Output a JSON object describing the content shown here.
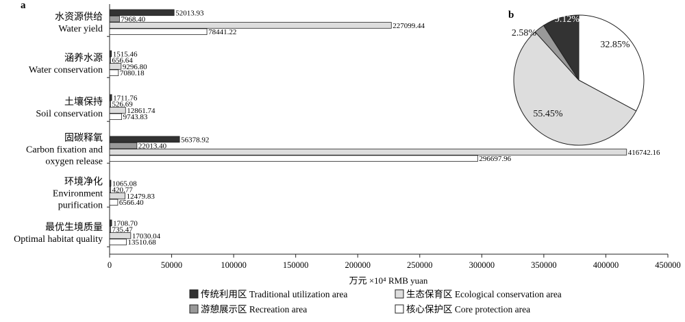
{
  "colors": {
    "traditional": "#333333",
    "recreation": "#999999",
    "ecological": "#dddddd",
    "core": "#ffffff",
    "stroke": "#222222"
  },
  "chart_data": [
    {
      "panel": "a",
      "type": "bar",
      "orientation": "horizontal",
      "categories": [
        {
          "zh": "水资源供给",
          "en": [
            "Water yield"
          ]
        },
        {
          "zh": "涵养水源",
          "en": [
            "Water conservation"
          ]
        },
        {
          "zh": "土壤保持",
          "en": [
            "Soil conservation"
          ]
        },
        {
          "zh": "固碳释氧",
          "en": [
            "Carbon fixation and",
            "oxygen release"
          ]
        },
        {
          "zh": "环境净化",
          "en": [
            "Environment",
            "purification"
          ]
        },
        {
          "zh": "最优生境质量",
          "en": [
            "Optimal habitat quality"
          ]
        }
      ],
      "series": [
        {
          "key": "traditional",
          "name": "传统利用区 Traditional utilization area",
          "values": [
            52013.93,
            1515.46,
            1711.76,
            56378.92,
            1065.08,
            1708.7
          ],
          "labels": [
            "52013.93",
            "1515.46",
            "1711.76",
            "56378.92",
            "1065.08",
            "1708.70"
          ]
        },
        {
          "key": "recreation",
          "name": "游憩展示区 Recreation area",
          "values": [
            7968.4,
            656.64,
            526.69,
            22013.4,
            420.77,
            735.47
          ],
          "labels": [
            "7968.40",
            "656.64",
            "526.69",
            "22013.40",
            "420.77",
            "735.47"
          ]
        },
        {
          "key": "ecological",
          "name": "生态保育区 Ecological conservation area",
          "values": [
            227099.44,
            9296.8,
            12861.74,
            416742.16,
            12479.83,
            17030.04
          ],
          "labels": [
            "227099.44",
            "9296.80",
            "12861.74",
            "416742.16",
            "12479.83",
            "17030.04"
          ]
        },
        {
          "key": "core",
          "name": "核心保护区 Core protection area",
          "values": [
            78441.22,
            7080.18,
            9743.83,
            296697.96,
            6566.4,
            13510.68
          ],
          "labels": [
            "78441.22",
            "7080.18",
            "9743.83",
            "296697.96",
            "6566.40",
            "13510.68"
          ]
        }
      ],
      "xlabel": "万元 ×10⁴ RMB yuan",
      "xlim": [
        0,
        450000
      ],
      "xticks": [
        0,
        50000,
        100000,
        150000,
        200000,
        250000,
        300000,
        350000,
        400000,
        450000
      ],
      "grid": false,
      "legend_position": "bottom"
    },
    {
      "panel": "b",
      "type": "pie",
      "slices": [
        {
          "key": "traditional",
          "value": 9.12,
          "label": "9.12%"
        },
        {
          "key": "core",
          "value": 32.85,
          "label": "32.85%"
        },
        {
          "key": "ecological",
          "value": 55.45,
          "label": "55.45%"
        },
        {
          "key": "recreation",
          "value": 2.58,
          "label": "2.58%"
        }
      ]
    }
  ],
  "legend": [
    {
      "key": "traditional",
      "label": "传统利用区 Traditional utilization area"
    },
    {
      "key": "ecological",
      "label": "生态保育区 Ecological conservation area"
    },
    {
      "key": "recreation",
      "label": "游憩展示区 Recreation area"
    },
    {
      "key": "core",
      "label": "核心保护区 Core protection area"
    }
  ]
}
